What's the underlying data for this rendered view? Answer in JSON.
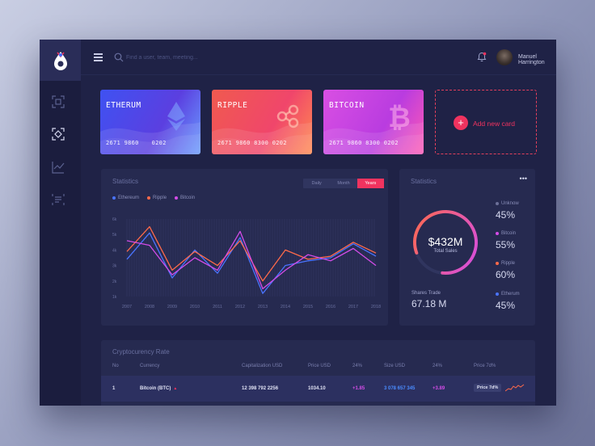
{
  "topbar": {
    "search_placeholder": "Find a user, team, meeting...",
    "user_name": "Manuel Harrington",
    "caret": "▾"
  },
  "sidebar": {
    "items": [
      {
        "icon": "scan-icon"
      },
      {
        "icon": "focus-icon"
      },
      {
        "icon": "chart-check-icon"
      },
      {
        "icon": "list-icon"
      }
    ]
  },
  "cards": [
    {
      "name": "ETHERUM",
      "number": "2671  9860",
      "expiry": "0202",
      "icon": "ethereum-icon",
      "colors": [
        "#3f52f2",
        "#5b3fe0",
        "#6a9cff"
      ]
    },
    {
      "name": "RIPPLE",
      "number": "2671  9860  8300  0202",
      "expiry": "",
      "icon": "ripple-icon",
      "colors": [
        "#f05a4f",
        "#f0466b",
        "#ff8a50"
      ]
    },
    {
      "name": "BITCOIN",
      "number": "2671  9860  8300  0202",
      "expiry": "",
      "icon": "bitcoin-icon",
      "colors": [
        "#d94fe3",
        "#b93ce0",
        "#ff5ab4"
      ]
    }
  ],
  "add_card": {
    "label": "Add new card",
    "plus": "+"
  },
  "statistics_chart": {
    "title": "Statistics",
    "tabs": [
      "Daily",
      "Month",
      "Years"
    ],
    "active_tab": "Years"
  },
  "chart_data": {
    "type": "line",
    "title": "Statistics",
    "x": [
      "2007",
      "2008",
      "2009",
      "2010",
      "2011",
      "2012",
      "2013",
      "2014",
      "2015",
      "2016",
      "2017",
      "2018"
    ],
    "y_ticks": [
      "1k",
      "2k",
      "3k",
      "4k",
      "5k",
      "6k"
    ],
    "ylim": [
      1,
      6
    ],
    "series": [
      {
        "name": "Ethereum",
        "color": "#4a74ff",
        "values": [
          3.4,
          5.1,
          2.2,
          4.0,
          2.5,
          4.8,
          1.2,
          3.0,
          3.3,
          3.5,
          4.4,
          3.6
        ]
      },
      {
        "name": "Ripple",
        "color": "#ff6a4a",
        "values": [
          3.9,
          5.5,
          2.7,
          3.9,
          3.0,
          4.6,
          2.0,
          4.0,
          3.4,
          3.6,
          4.5,
          3.8
        ]
      },
      {
        "name": "Bitcoin",
        "color": "#d44ce8",
        "values": [
          4.6,
          4.3,
          2.4,
          3.5,
          2.7,
          5.2,
          1.5,
          2.7,
          3.7,
          3.3,
          4.1,
          3.0
        ]
      }
    ],
    "grid": true,
    "legend": "top-left"
  },
  "summary": {
    "title": "Statistics",
    "menu": "•••",
    "total_value": "$432M",
    "total_label": "Total Sales",
    "shares_label": "Shares Trade",
    "shares_value": "67.18 M",
    "donut_percent": 82,
    "items": [
      {
        "label": "Unknow",
        "value": "45%",
        "color": "#6c7099"
      },
      {
        "label": "Bitcoin",
        "value": "55%",
        "color": "#d44ce8"
      },
      {
        "label": "Ripple",
        "value": "60%",
        "color": "#ff6a4a"
      },
      {
        "label": "Etherum",
        "value": "45%",
        "color": "#4a74ff"
      }
    ]
  },
  "crypto_table": {
    "title": "Cryptocurency Rate",
    "columns": [
      "No",
      "Currency",
      "Capitalization USD",
      "Price USD",
      "24%",
      "Size USD",
      "24%",
      "Price 7d%"
    ],
    "rows": [
      {
        "no": "1",
        "currency": "Bitcoin (BTC)",
        "cap": "12 398 792 2256",
        "price": "1034.10",
        "change1": "+1.85",
        "size": "3 078 657 345",
        "change2": "+3.89",
        "badge": "Price 7d%"
      }
    ]
  }
}
